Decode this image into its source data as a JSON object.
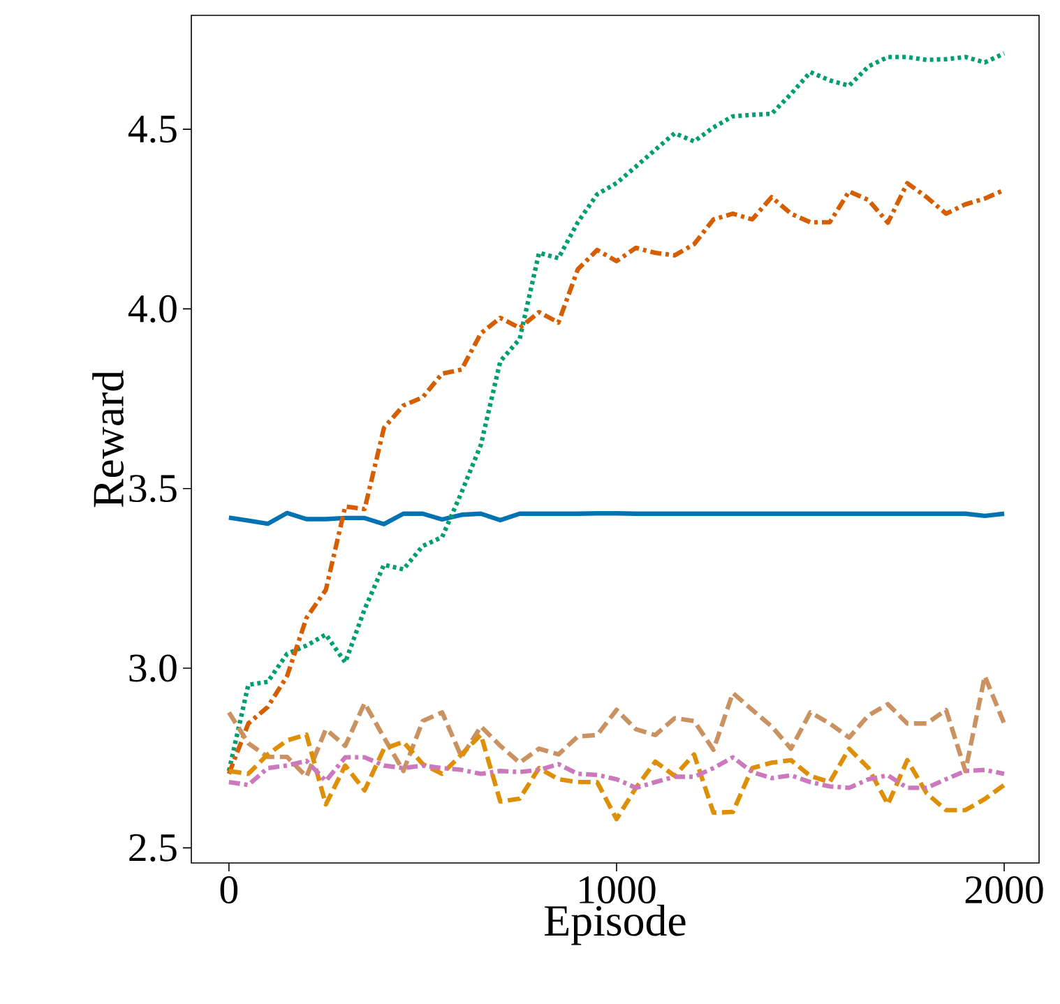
{
  "chart_data": {
    "type": "line",
    "xlabel": "Episode",
    "ylabel": "Reward",
    "x": [
      0,
      50,
      100,
      150,
      200,
      250,
      300,
      350,
      400,
      450,
      500,
      550,
      600,
      650,
      700,
      750,
      800,
      850,
      900,
      950,
      1000,
      1050,
      1100,
      1150,
      1200,
      1250,
      1300,
      1350,
      1400,
      1450,
      1500,
      1550,
      1600,
      1650,
      1700,
      1750,
      1800,
      1850,
      1900,
      1950,
      2000
    ],
    "xlim": [
      -97,
      2090
    ],
    "ylim": [
      2.458,
      4.817
    ],
    "xticks": [
      0,
      1000,
      2000
    ],
    "yticks": [
      2.5,
      {
        "value": 3,
        "label": "3.0"
      },
      3.5,
      {
        "value": 4,
        "label": "4.0"
      },
      4.5
    ],
    "series": [
      {
        "color": "#0173b2",
        "line_style": "solid",
        "values": [
          3.419,
          3.411,
          3.402,
          3.432,
          3.415,
          3.415,
          3.418,
          3.418,
          3.401,
          3.43,
          3.43,
          3.414,
          3.427,
          3.43,
          3.412,
          3.43,
          3.43,
          3.43,
          3.43,
          3.431,
          3.431,
          3.43,
          3.43,
          3.43,
          3.43,
          3.43,
          3.43,
          3.43,
          3.43,
          3.43,
          3.43,
          3.43,
          3.43,
          3.43,
          3.43,
          3.43,
          3.43,
          3.43,
          3.43,
          3.424,
          3.43
        ]
      },
      {
        "color": "#029e73",
        "line_style": "dotted",
        "values": [
          2.714,
          2.954,
          2.962,
          3.04,
          3.063,
          3.094,
          3.016,
          3.164,
          3.288,
          3.275,
          3.34,
          3.365,
          3.489,
          3.622,
          3.854,
          3.916,
          4.156,
          4.141,
          4.241,
          4.319,
          4.35,
          4.396,
          4.443,
          4.489,
          4.466,
          4.505,
          4.536,
          4.54,
          4.543,
          4.598,
          4.659,
          4.636,
          4.621,
          4.675,
          4.701,
          4.701,
          4.693,
          4.695,
          4.701,
          4.686,
          4.711
        ]
      },
      {
        "color": "#d55e00",
        "line_style": "dashdot",
        "values": [
          2.706,
          2.846,
          2.892,
          2.978,
          3.14,
          3.218,
          3.45,
          3.443,
          3.669,
          3.731,
          3.754,
          3.82,
          3.831,
          3.932,
          3.975,
          3.947,
          3.991,
          3.962,
          4.11,
          4.164,
          4.133,
          4.17,
          4.156,
          4.149,
          4.18,
          4.249,
          4.265,
          4.249,
          4.311,
          4.265,
          4.241,
          4.241,
          4.327,
          4.303,
          4.24,
          4.35,
          4.311,
          4.265,
          4.291,
          4.307,
          4.331
        ]
      },
      {
        "color": "#ca9161",
        "line_style": "dashed",
        "values": [
          2.877,
          2.791,
          2.753,
          2.753,
          2.698,
          2.83,
          2.784,
          2.903,
          2.807,
          2.714,
          2.853,
          2.877,
          2.753,
          2.838,
          2.784,
          2.737,
          2.776,
          2.76,
          2.81,
          2.814,
          2.884,
          2.83,
          2.814,
          2.861,
          2.853,
          2.773,
          2.931,
          2.884,
          2.838,
          2.776,
          2.877,
          2.846,
          2.807,
          2.869,
          2.9,
          2.846,
          2.846,
          2.884,
          2.714,
          2.978,
          2.846
        ]
      },
      {
        "color": "#de8f05",
        "line_style": "dashed",
        "values": [
          2.714,
          2.706,
          2.76,
          2.799,
          2.815,
          2.621,
          2.729,
          2.66,
          2.776,
          2.795,
          2.733,
          2.706,
          2.76,
          2.815,
          2.629,
          2.637,
          2.722,
          2.691,
          2.683,
          2.683,
          2.58,
          2.667,
          2.74,
          2.7,
          2.76,
          2.598,
          2.6,
          2.722,
          2.737,
          2.744,
          2.7,
          2.683,
          2.776,
          2.722,
          2.621,
          2.744,
          2.652,
          2.605,
          2.605,
          2.636,
          2.675
        ]
      },
      {
        "color": "#cc78bc",
        "line_style": "dashdot",
        "values": [
          2.683,
          2.675,
          2.722,
          2.729,
          2.742,
          2.686,
          2.752,
          2.752,
          2.729,
          2.722,
          2.729,
          2.722,
          2.717,
          2.706,
          2.714,
          2.711,
          2.717,
          2.733,
          2.706,
          2.703,
          2.691,
          2.667,
          2.683,
          2.698,
          2.698,
          2.722,
          2.752,
          2.711,
          2.694,
          2.702,
          2.683,
          2.671,
          2.667,
          2.691,
          2.702,
          2.667,
          2.667,
          2.691,
          2.714,
          2.717,
          2.706
        ]
      }
    ]
  }
}
